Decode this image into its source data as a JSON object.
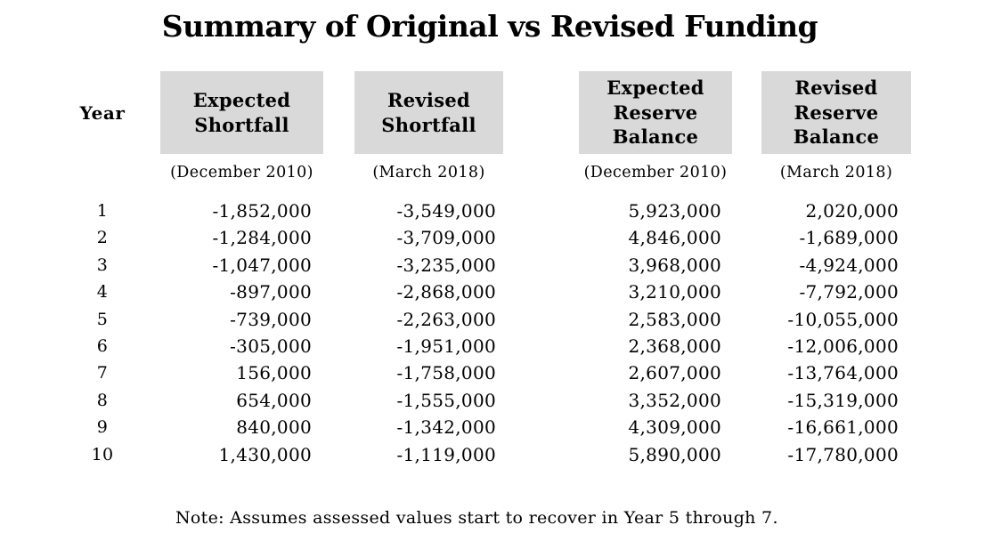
{
  "title": "Summary of Original vs Revised Funding",
  "table": {
    "year_header": "Year",
    "columns": [
      {
        "id": "expected-shortfall",
        "label": "Expected\nShortfall",
        "sublabel": "(December 2010)"
      },
      {
        "id": "revised-shortfall",
        "label": "Revised\nShortfall",
        "sublabel": "(March 2018)"
      },
      {
        "id": "expected-reserve-balance",
        "label": "Expected\nReserve\nBalance",
        "sublabel": "(December 2010)"
      },
      {
        "id": "revised-reserve-balance",
        "label": "Revised\nReserve\nBalance",
        "sublabel": "(March 2018)"
      }
    ],
    "rows": [
      {
        "year": "1",
        "values": [
          "-1,852,000",
          "-3,549,000",
          "5,923,000",
          "2,020,000"
        ]
      },
      {
        "year": "2",
        "values": [
          "-1,284,000",
          "-3,709,000",
          "4,846,000",
          "-1,689,000"
        ]
      },
      {
        "year": "3",
        "values": [
          "-1,047,000",
          "-3,235,000",
          "3,968,000",
          "-4,924,000"
        ]
      },
      {
        "year": "4",
        "values": [
          "-897,000",
          "-2,868,000",
          "3,210,000",
          "-7,792,000"
        ]
      },
      {
        "year": "5",
        "values": [
          "-739,000",
          "-2,263,000",
          "2,583,000",
          "-10,055,000"
        ]
      },
      {
        "year": "6",
        "values": [
          "-305,000",
          "-1,951,000",
          "2,368,000",
          "-12,006,000"
        ]
      },
      {
        "year": "7",
        "values": [
          "156,000",
          "-1,758,000",
          "2,607,000",
          "-13,764,000"
        ]
      },
      {
        "year": "8",
        "values": [
          "654,000",
          "-1,555,000",
          "3,352,000",
          "-15,319,000"
        ]
      },
      {
        "year": "9",
        "values": [
          "840,000",
          "-1,342,000",
          "4,309,000",
          "-16,661,000"
        ]
      },
      {
        "year": "10",
        "values": [
          "1,430,000",
          "-1,119,000",
          "5,890,000",
          "-17,780,000"
        ]
      }
    ]
  },
  "note": "Note: Assumes assessed values start to recover in Year 5 through 7.",
  "colors": {
    "header_box_bg": "#d9d9d9",
    "text": "#000000",
    "page_bg": "#ffffff"
  },
  "chart_data": {
    "type": "table",
    "title": "Summary of Original vs Revised Funding",
    "columns": [
      "Year",
      "Expected Shortfall (December 2010)",
      "Revised Shortfall (March 2018)",
      "Expected Reserve Balance (December 2010)",
      "Revised Reserve Balance (March 2018)"
    ],
    "rows": [
      [
        1,
        -1852000,
        -3549000,
        5923000,
        2020000
      ],
      [
        2,
        -1284000,
        -3709000,
        4846000,
        -1689000
      ],
      [
        3,
        -1047000,
        -3235000,
        3968000,
        -4924000
      ],
      [
        4,
        -897000,
        -2868000,
        3210000,
        -7792000
      ],
      [
        5,
        -739000,
        -2263000,
        2583000,
        -10055000
      ],
      [
        6,
        -305000,
        -1951000,
        2368000,
        -12006000
      ],
      [
        7,
        156000,
        -1758000,
        2607000,
        -13764000
      ],
      [
        8,
        654000,
        -1555000,
        3352000,
        -15319000
      ],
      [
        9,
        840000,
        -1342000,
        4309000,
        -16661000
      ],
      [
        10,
        1430000,
        -1119000,
        5890000,
        -17780000
      ]
    ],
    "note": "Note: Assumes assessed values start to recover in Year 5 through 7."
  }
}
